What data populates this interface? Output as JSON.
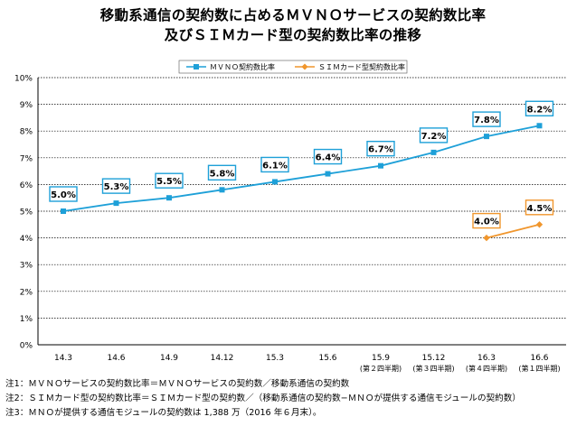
{
  "title": {
    "line1": "移動系通信の契約数に占めるＭＶＮＯサービスの契約数比率",
    "line2": "及びＳＩＭカード型の契約数比率の推移"
  },
  "colors": {
    "mvno": "#1ea0d8",
    "sim": "#f0962d",
    "axis": "#000000",
    "grid": "#000000"
  },
  "chart_data": {
    "type": "line",
    "title": "移動系通信の契約数に占めるＭＶＮＯサービスの契約数比率 及びＳＩＭカード型の契約数比率の推移",
    "categories": [
      "14.3",
      "14.6",
      "14.9",
      "14.12",
      "15.3",
      "15.6",
      "15.9",
      "15.12",
      "16.3",
      "16.6"
    ],
    "sub_labels": [
      "",
      "",
      "",
      "",
      "",
      "",
      "(第２四半期)",
      "(第３四半期)",
      "(第４四半期)",
      "(第１四半期)"
    ],
    "yticks": [
      "0%",
      "1%",
      "2%",
      "3%",
      "4%",
      "5%",
      "6%",
      "7%",
      "8%",
      "9%",
      "10%"
    ],
    "ylim": [
      0,
      10
    ],
    "legend_position": "top",
    "series": [
      {
        "name": "ＭＶＮＯ契約数比率",
        "color": "#1ea0d8",
        "marker": "square",
        "values": [
          5.0,
          5.3,
          5.5,
          5.8,
          6.1,
          6.4,
          6.7,
          7.2,
          7.8,
          8.2
        ],
        "labels": [
          "5.0%",
          "5.3%",
          "5.5%",
          "5.8%",
          "6.1%",
          "6.4%",
          "6.7%",
          "7.2%",
          "7.8%",
          "8.2%"
        ]
      },
      {
        "name": "ＳＩＭカード型契約数比率",
        "color": "#f0962d",
        "marker": "diamond",
        "values": [
          null,
          null,
          null,
          null,
          null,
          null,
          null,
          null,
          4.0,
          4.5
        ],
        "labels": [
          null,
          null,
          null,
          null,
          null,
          null,
          null,
          null,
          "4.0%",
          "4.5%"
        ]
      }
    ]
  },
  "notes": [
    "注1：ＭＶＮＯサービスの契約数比率＝ＭＶＮＯサービスの契約数／移動系通信の契約数",
    "注2：ＳＩＭカード型の契約数比率＝ＳＩＭカード型の契約数／（移動系通信の契約数−ＭＮＯが提供する通信モジュールの契約数）",
    "注3：ＭＮＯが提供する通信モジュールの契約数は 1,388 万（2016 年６月末）。"
  ]
}
